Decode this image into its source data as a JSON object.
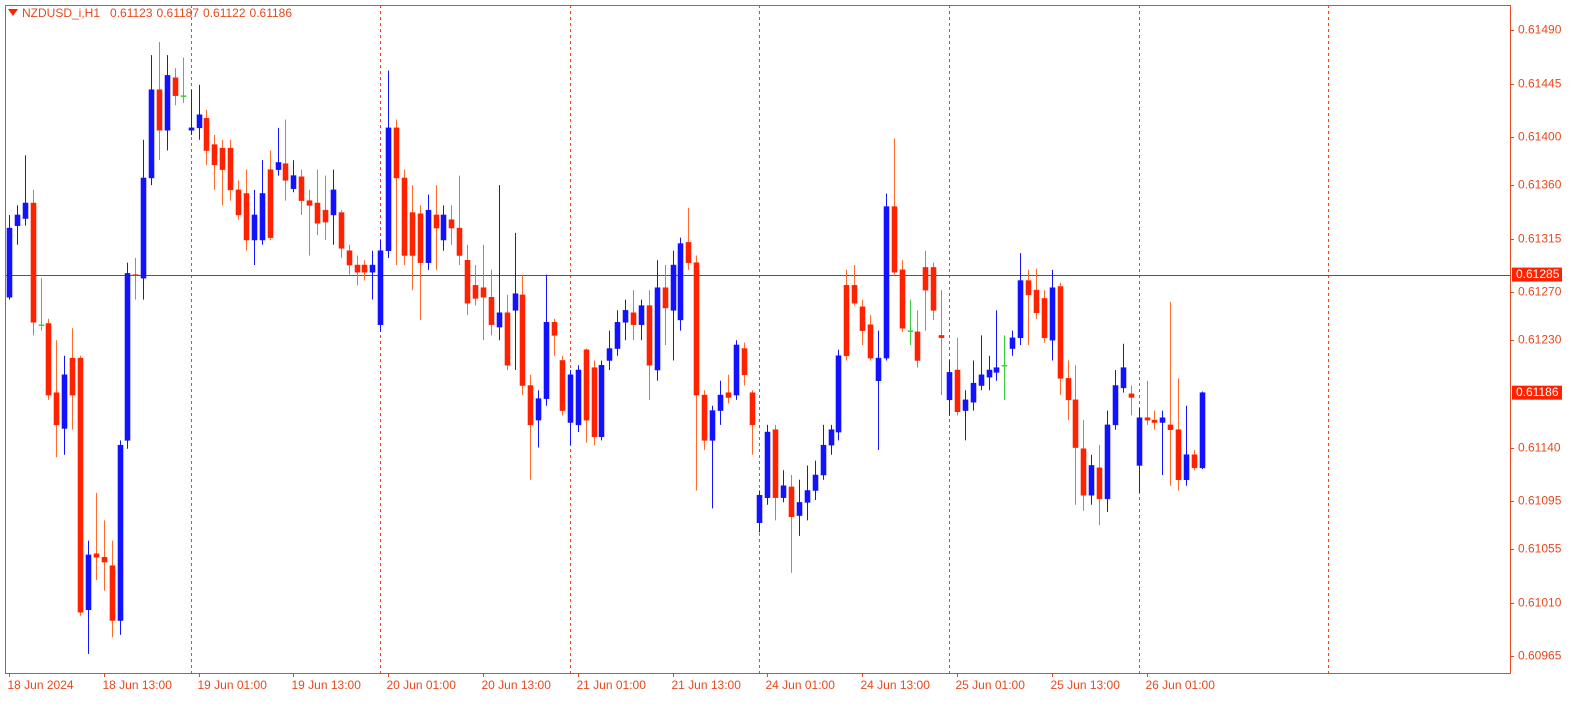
{
  "chart_data": {
    "type": "candlestick",
    "title": "NZDUSD_i,H1",
    "up_color": "#1212ff",
    "down_color": "#ff2200",
    "down_wick_color": "#ff6a2a",
    "doji_color": "#3ccc3c",
    "text_color": "#e8491d",
    "grid": true,
    "ylim": [
      0.60951,
      0.61511
    ],
    "xlim": [
      -0.5,
      190
    ],
    "yticks": [
      {
        "value": 0.6149,
        "label": "0.61490"
      },
      {
        "value": 0.61445,
        "label": "0.61445"
      },
      {
        "value": 0.614,
        "label": "0.61400"
      },
      {
        "value": 0.6136,
        "label": "0.61360"
      },
      {
        "value": 0.61315,
        "label": "0.61315"
      },
      {
        "value": 0.6127,
        "label": "0.61270"
      },
      {
        "value": 0.6123,
        "label": "0.61230"
      },
      {
        "value": 0.6114,
        "label": "0.61140"
      },
      {
        "value": 0.61095,
        "label": "0.61095"
      },
      {
        "value": 0.61055,
        "label": "0.61055"
      },
      {
        "value": 0.6101,
        "label": "0.61010"
      },
      {
        "value": 0.60965,
        "label": "0.60965"
      }
    ],
    "xticks": [
      {
        "value": 0,
        "label": "18 Jun 2024"
      },
      {
        "value": 12,
        "label": "18 Jun 13:00"
      },
      {
        "value": 24,
        "label": "19 Jun 01:00"
      },
      {
        "value": 36,
        "label": "19 Jun 13:00"
      },
      {
        "value": 48,
        "label": "20 Jun 01:00"
      },
      {
        "value": 60,
        "label": "20 Jun 13:00"
      },
      {
        "value": 72,
        "label": "21 Jun 01:00"
      },
      {
        "value": 84,
        "label": "21 Jun 13:00"
      },
      {
        "value": 96,
        "label": "24 Jun 01:00"
      },
      {
        "value": 108,
        "label": "24 Jun 13:00"
      },
      {
        "value": 120,
        "label": "25 Jun 01:00"
      },
      {
        "value": 132,
        "label": "25 Jun 13:00"
      },
      {
        "value": 144,
        "label": "26 Jun 01:00"
      }
    ],
    "hline": 0.61285,
    "candles": [
      [
        0.61266,
        0.61335,
        0.61264,
        0.61324
      ],
      [
        0.61326,
        0.61343,
        0.6131,
        0.61335
      ],
      [
        0.61332,
        0.61385,
        0.61326,
        0.61345
      ],
      [
        0.61345,
        0.61356,
        0.61234,
        0.61245
      ],
      [
        0.61243,
        0.61282,
        0.61238,
        0.61243
      ],
      [
        0.61244,
        0.61248,
        0.6118,
        0.61184
      ],
      [
        0.61186,
        0.6123,
        0.61132,
        0.61159
      ],
      [
        0.61156,
        0.61217,
        0.61134,
        0.61201
      ],
      [
        0.61215,
        0.6124,
        0.61155,
        0.61184
      ],
      [
        0.61215,
        0.61217,
        0.60999,
        0.61002
      ],
      [
        0.61004,
        0.61062,
        0.60967,
        0.6105
      ],
      [
        0.61051,
        0.61102,
        0.61029,
        0.61048
      ],
      [
        0.61048,
        0.61079,
        0.6102,
        0.61044
      ],
      [
        0.61041,
        0.61062,
        0.60981,
        0.60995
      ],
      [
        0.60995,
        0.61146,
        0.60983,
        0.61142
      ],
      [
        0.61146,
        0.61295,
        0.61139,
        0.61286
      ],
      [
        0.61285,
        0.61299,
        0.61264,
        0.61284
      ],
      [
        0.61282,
        0.61398,
        0.61264,
        0.61366
      ],
      [
        0.61366,
        0.61469,
        0.6136,
        0.6144
      ],
      [
        0.6144,
        0.6148,
        0.61381,
        0.61406
      ],
      [
        0.61406,
        0.61469,
        0.61389,
        0.61452
      ],
      [
        0.6145,
        0.61458,
        0.61427,
        0.61435
      ],
      [
        0.61435,
        0.61467,
        0.61429,
        0.61435
      ],
      [
        0.61406,
        0.6144,
        0.61402,
        0.61408
      ],
      [
        0.61408,
        0.61444,
        0.61398,
        0.61419
      ],
      [
        0.61416,
        0.61423,
        0.61377,
        0.61389
      ],
      [
        0.61394,
        0.61402,
        0.61356,
        0.61377
      ],
      [
        0.61391,
        0.61398,
        0.61343,
        0.61373
      ],
      [
        0.61391,
        0.61398,
        0.61347,
        0.61356
      ],
      [
        0.61356,
        0.61364,
        0.61331,
        0.61335
      ],
      [
        0.61353,
        0.61373,
        0.61305,
        0.61314
      ],
      [
        0.61314,
        0.61356,
        0.61293,
        0.61335
      ],
      [
        0.61314,
        0.61381,
        0.6131,
        0.61353
      ],
      [
        0.61373,
        0.61389,
        0.61314,
        0.61316
      ],
      [
        0.61373,
        0.61408,
        0.61368,
        0.61379
      ],
      [
        0.61378,
        0.61415,
        0.61347,
        0.61364
      ],
      [
        0.61357,
        0.61381,
        0.61354,
        0.61368
      ],
      [
        0.61367,
        0.61373,
        0.61335,
        0.61347
      ],
      [
        0.61347,
        0.61356,
        0.61301,
        0.61343
      ],
      [
        0.61345,
        0.61373,
        0.61318,
        0.61328
      ],
      [
        0.61339,
        0.61368,
        0.61314,
        0.61329
      ],
      [
        0.61335,
        0.61373,
        0.6131,
        0.61356
      ],
      [
        0.61337,
        0.61339,
        0.61299,
        0.61307
      ],
      [
        0.61305,
        0.6131,
        0.61285,
        0.61293
      ],
      [
        0.61293,
        0.61301,
        0.61276,
        0.61287
      ],
      [
        0.61293,
        0.61297,
        0.6128,
        0.61287
      ],
      [
        0.61287,
        0.61305,
        0.61264,
        0.61293
      ],
      [
        0.61243,
        0.61314,
        0.61237,
        0.61305
      ],
      [
        0.61305,
        0.61456,
        0.61299,
        0.61408
      ],
      [
        0.61408,
        0.61415,
        0.61293,
        0.61366
      ],
      [
        0.61366,
        0.61373,
        0.61293,
        0.61301
      ],
      [
        0.61337,
        0.6136,
        0.61272,
        0.61301
      ],
      [
        0.61336,
        0.61343,
        0.61247,
        0.61295
      ],
      [
        0.61295,
        0.61352,
        0.61289,
        0.61339
      ],
      [
        0.61335,
        0.6136,
        0.61289,
        0.61324
      ],
      [
        0.61314,
        0.61343,
        0.61305,
        0.61335
      ],
      [
        0.61331,
        0.61343,
        0.6131,
        0.61324
      ],
      [
        0.61324,
        0.61368,
        0.61293,
        0.61301
      ],
      [
        0.61297,
        0.6131,
        0.61251,
        0.61261
      ],
      [
        0.61276,
        0.61293,
        0.61259,
        0.61265
      ],
      [
        0.61274,
        0.6131,
        0.6123,
        0.61266
      ],
      [
        0.61266,
        0.61289,
        0.61234,
        0.61243
      ],
      [
        0.61241,
        0.6136,
        0.6123,
        0.61253
      ],
      [
        0.61253,
        0.61268,
        0.61205,
        0.61209
      ],
      [
        0.61255,
        0.6132,
        0.61205,
        0.61269
      ],
      [
        0.61268,
        0.61285,
        0.61184,
        0.61192
      ],
      [
        0.61192,
        0.61201,
        0.61113,
        0.61159
      ],
      [
        0.61163,
        0.61188,
        0.6114,
        0.61181
      ],
      [
        0.61181,
        0.61285,
        0.61175,
        0.61245
      ],
      [
        0.61245,
        0.61248,
        0.61217,
        0.61234
      ],
      [
        0.61213,
        0.61217,
        0.61167,
        0.61171
      ],
      [
        0.61161,
        0.61205,
        0.61142,
        0.61201
      ],
      [
        0.61159,
        0.61209,
        0.61153,
        0.61205
      ],
      [
        0.61222,
        0.61223,
        0.61144,
        0.61163
      ],
      [
        0.61207,
        0.61213,
        0.61142,
        0.61149
      ],
      [
        0.61149,
        0.61213,
        0.61146,
        0.61209
      ],
      [
        0.61213,
        0.61238,
        0.61205,
        0.61223
      ],
      [
        0.61223,
        0.61255,
        0.61217,
        0.61245
      ],
      [
        0.61245,
        0.61264,
        0.6123,
        0.61255
      ],
      [
        0.61253,
        0.61272,
        0.6123,
        0.61243
      ],
      [
        0.61243,
        0.61264,
        0.6123,
        0.61259
      ],
      [
        0.61259,
        0.61272,
        0.6118,
        0.61209
      ],
      [
        0.61205,
        0.61297,
        0.61196,
        0.61274
      ],
      [
        0.61274,
        0.61293,
        0.61226,
        0.61257
      ],
      [
        0.61255,
        0.61305,
        0.61213,
        0.61293
      ],
      [
        0.61247,
        0.61316,
        0.61238,
        0.61311
      ],
      [
        0.61312,
        0.61341,
        0.61289,
        0.61295
      ],
      [
        0.61295,
        0.61301,
        0.61104,
        0.61184
      ],
      [
        0.61184,
        0.61188,
        0.61138,
        0.61146
      ],
      [
        0.61146,
        0.61175,
        0.61089,
        0.61171
      ],
      [
        0.61171,
        0.61196,
        0.61159,
        0.61184
      ],
      [
        0.61186,
        0.61201,
        0.61177,
        0.61182
      ],
      [
        0.61184,
        0.6123,
        0.6118,
        0.61226
      ],
      [
        0.61223,
        0.61228,
        0.61192,
        0.61201
      ],
      [
        0.61186,
        0.61188,
        0.61134,
        0.61159
      ],
      [
        0.61077,
        0.61104,
        0.61069,
        0.611
      ],
      [
        0.61098,
        0.61159,
        0.61092,
        0.61153
      ],
      [
        0.61155,
        0.61159,
        0.61079,
        0.61098
      ],
      [
        0.61098,
        0.61121,
        0.61094,
        0.61108
      ],
      [
        0.61107,
        0.61117,
        0.61035,
        0.61082
      ],
      [
        0.61083,
        0.61113,
        0.61066,
        0.61094
      ],
      [
        0.61094,
        0.61125,
        0.61079,
        0.61104
      ],
      [
        0.61104,
        0.61129,
        0.61096,
        0.61117
      ],
      [
        0.61117,
        0.61159,
        0.61113,
        0.61142
      ],
      [
        0.61142,
        0.61159,
        0.61134,
        0.61155
      ],
      [
        0.61153,
        0.61222,
        0.61146,
        0.61217
      ],
      [
        0.61276,
        0.61289,
        0.61213,
        0.61217
      ],
      [
        0.61276,
        0.61293,
        0.61259,
        0.61261
      ],
      [
        0.61258,
        0.61264,
        0.61226,
        0.61238
      ],
      [
        0.61243,
        0.61251,
        0.61213,
        0.61215
      ],
      [
        0.61196,
        0.61238,
        0.61138,
        0.61215
      ],
      [
        0.61215,
        0.61353,
        0.61213,
        0.61342
      ],
      [
        0.61342,
        0.61399,
        0.61285,
        0.61287
      ],
      [
        0.61289,
        0.61297,
        0.61237,
        0.6124
      ],
      [
        0.61238,
        0.61264,
        0.61226,
        0.61238
      ],
      [
        0.61237,
        0.61255,
        0.61207,
        0.61213
      ],
      [
        0.61291,
        0.61305,
        0.61238,
        0.61272
      ],
      [
        0.61291,
        0.61295,
        0.61247,
        0.61255
      ],
      [
        0.61234,
        0.61272,
        0.61184,
        0.61232
      ],
      [
        0.6118,
        0.61213,
        0.61167,
        0.61203
      ],
      [
        0.61205,
        0.61232,
        0.61167,
        0.6117
      ],
      [
        0.61171,
        0.61188,
        0.61146,
        0.6118
      ],
      [
        0.61178,
        0.61213,
        0.61171,
        0.61194
      ],
      [
        0.61192,
        0.61234,
        0.61188,
        0.61201
      ],
      [
        0.61199,
        0.61217,
        0.61188,
        0.61205
      ],
      [
        0.61203,
        0.61255,
        0.61196,
        0.61207
      ],
      [
        0.61209,
        0.61234,
        0.6118,
        0.61209
      ],
      [
        0.61223,
        0.61238,
        0.61217,
        0.61232
      ],
      [
        0.61232,
        0.61303,
        0.61226,
        0.6128
      ],
      [
        0.6128,
        0.61289,
        0.61226,
        0.61268
      ],
      [
        0.61272,
        0.6129,
        0.61248,
        0.61253
      ],
      [
        0.61265,
        0.61272,
        0.61228,
        0.61232
      ],
      [
        0.6123,
        0.61289,
        0.61213,
        0.61274
      ],
      [
        0.61275,
        0.61278,
        0.61184,
        0.61198
      ],
      [
        0.61198,
        0.61213,
        0.61163,
        0.6118
      ],
      [
        0.6118,
        0.61209,
        0.61092,
        0.6114
      ],
      [
        0.61139,
        0.61163,
        0.61087,
        0.611
      ],
      [
        0.611,
        0.61134,
        0.61092,
        0.61125
      ],
      [
        0.61123,
        0.61142,
        0.61075,
        0.61097
      ],
      [
        0.61097,
        0.61171,
        0.61086,
        0.61159
      ],
      [
        0.61159,
        0.61205,
        0.61155,
        0.61192
      ],
      [
        0.6119,
        0.61227,
        0.61186,
        0.61207
      ],
      [
        0.61185,
        0.61192,
        0.61167,
        0.61182
      ],
      [
        0.61125,
        0.61173,
        0.61102,
        0.61165
      ],
      [
        0.61165,
        0.61196,
        0.61159,
        0.61163
      ],
      [
        0.61163,
        0.61171,
        0.61155,
        0.61161
      ],
      [
        0.61161,
        0.61171,
        0.61117,
        0.61165
      ],
      [
        0.61159,
        0.61262,
        0.61108,
        0.61155
      ],
      [
        0.61155,
        0.61198,
        0.61104,
        0.61113
      ],
      [
        0.61113,
        0.61175,
        0.61108,
        0.61134
      ],
      [
        0.61134,
        0.61138,
        0.61121,
        0.61123
      ],
      [
        0.61123,
        0.61187,
        0.61122,
        0.61186
      ]
    ]
  }
}
